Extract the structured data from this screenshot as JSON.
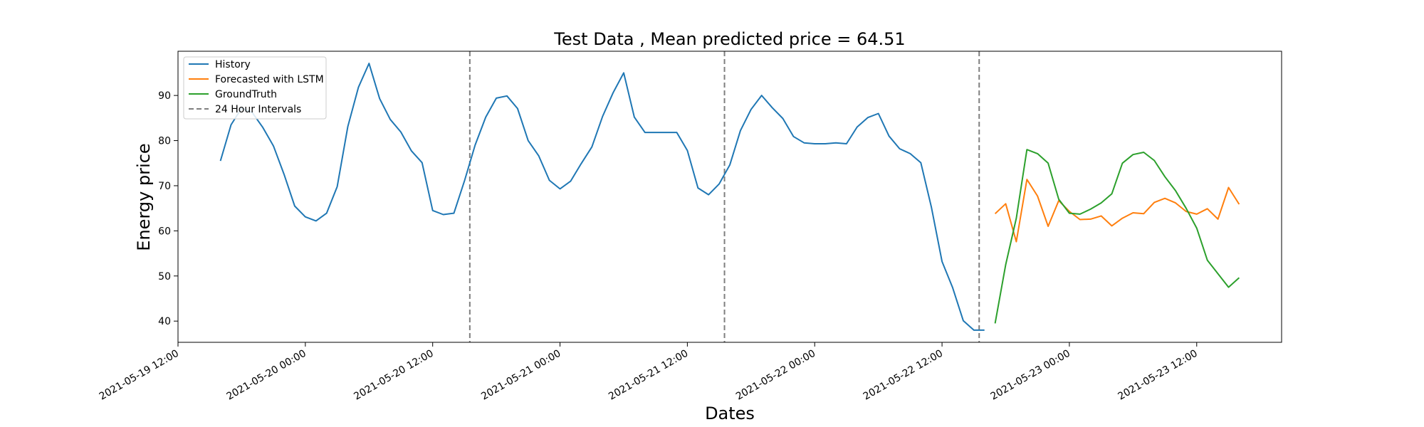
{
  "chart_data": {
    "type": "line",
    "title": "Test Data , Mean predicted price = 64.51",
    "xlabel": "Dates",
    "ylabel": "Energy price",
    "x_axis_type": "datetime",
    "xlim": [
      "2021-05-19 12:00",
      "2021-05-23 20:00"
    ],
    "ylim": [
      35.3,
      99.8
    ],
    "xticks": [
      "2021-05-19 12:00",
      "2021-05-20 00:00",
      "2021-05-20 12:00",
      "2021-05-21 00:00",
      "2021-05-21 12:00",
      "2021-05-22 00:00",
      "2021-05-22 12:00",
      "2021-05-23 00:00",
      "2021-05-23 12:00"
    ],
    "xtick_labels": [
      "2021-05-19 12:00",
      "2021-05-20 00:00",
      "2021-05-20 12:00",
      "2021-05-21 00:00",
      "2021-05-21 12:00",
      "2021-05-22 00:00",
      "2021-05-22 12:00",
      "2021-05-23 00:00",
      "2021-05-23 12:00"
    ],
    "yticks": [
      40,
      50,
      60,
      70,
      80,
      90
    ],
    "ytick_labels": [
      "40",
      "50",
      "60",
      "70",
      "80",
      "90"
    ],
    "grid": false,
    "legend_position": "top-left",
    "legend": [
      "History",
      "Forecasted with LSTM",
      "GroundTruth",
      "24 Hour Intervals"
    ],
    "series": [
      {
        "name": "History",
        "color": "#1f77b4",
        "x": [
          "2021-05-19 16:00",
          "2021-05-19 17:00",
          "2021-05-19 18:00",
          "2021-05-19 19:00",
          "2021-05-19 20:00",
          "2021-05-19 21:00",
          "2021-05-19 22:00",
          "2021-05-19 23:00",
          "2021-05-20 00:00",
          "2021-05-20 01:00",
          "2021-05-20 02:00",
          "2021-05-20 03:00",
          "2021-05-20 04:00",
          "2021-05-20 05:00",
          "2021-05-20 06:00",
          "2021-05-20 07:00",
          "2021-05-20 08:00",
          "2021-05-20 09:00",
          "2021-05-20 10:00",
          "2021-05-20 11:00",
          "2021-05-20 12:00",
          "2021-05-20 13:00",
          "2021-05-20 14:00",
          "2021-05-20 15:00",
          "2021-05-20 16:00",
          "2021-05-20 17:00",
          "2021-05-20 18:00",
          "2021-05-20 19:00",
          "2021-05-20 20:00",
          "2021-05-20 21:00",
          "2021-05-20 22:00",
          "2021-05-20 23:00",
          "2021-05-21 00:00",
          "2021-05-21 01:00",
          "2021-05-21 02:00",
          "2021-05-21 03:00",
          "2021-05-21 04:00",
          "2021-05-21 05:00",
          "2021-05-21 06:00",
          "2021-05-21 07:00",
          "2021-05-21 08:00",
          "2021-05-21 09:00",
          "2021-05-21 10:00",
          "2021-05-21 11:00",
          "2021-05-21 12:00",
          "2021-05-21 13:00",
          "2021-05-21 14:00",
          "2021-05-21 15:00",
          "2021-05-21 16:00",
          "2021-05-21 17:00",
          "2021-05-21 18:00",
          "2021-05-21 19:00",
          "2021-05-21 20:00",
          "2021-05-21 21:00",
          "2021-05-21 22:00",
          "2021-05-21 23:00",
          "2021-05-22 00:00",
          "2021-05-22 01:00",
          "2021-05-22 02:00",
          "2021-05-22 03:00",
          "2021-05-22 04:00",
          "2021-05-22 05:00",
          "2021-05-22 06:00",
          "2021-05-22 07:00",
          "2021-05-22 08:00",
          "2021-05-22 09:00",
          "2021-05-22 10:00",
          "2021-05-22 11:00",
          "2021-05-22 12:00",
          "2021-05-22 13:00",
          "2021-05-22 14:00",
          "2021-05-22 15:00",
          "2021-05-22 16:00"
        ],
        "values": [
          75.5,
          83.5,
          87.2,
          86.2,
          82.9,
          78.8,
          72.5,
          65.5,
          63.1,
          62.2,
          63.9,
          69.8,
          83.1,
          91.8,
          97.1,
          89.3,
          84.7,
          81.9,
          77.7,
          75.1,
          64.5,
          63.6,
          63.9,
          71.1,
          79.0,
          85.2,
          89.4,
          89.9,
          87.1,
          80.0,
          76.6,
          71.2,
          69.3,
          71.0,
          74.9,
          78.6,
          85.3,
          90.6,
          95.0,
          85.2,
          81.8,
          81.8,
          81.8,
          81.8,
          77.8,
          69.5,
          68.0,
          70.4,
          74.6,
          82.2,
          86.9,
          90.0,
          87.3,
          84.9,
          80.9,
          79.5,
          79.3,
          79.3,
          79.5,
          79.3,
          83.0,
          85.1,
          86.0,
          81.0,
          78.2,
          77.1,
          75.1,
          65.2,
          53.2,
          47.4,
          40.1,
          38.0,
          38.0
        ]
      },
      {
        "name": "Forecasted with LSTM",
        "color": "#ff7f0e",
        "x": [
          "2021-05-22 17:00",
          "2021-05-22 18:00",
          "2021-05-22 19:00",
          "2021-05-22 20:00",
          "2021-05-22 21:00",
          "2021-05-22 22:00",
          "2021-05-22 23:00",
          "2021-05-23 00:00",
          "2021-05-23 01:00",
          "2021-05-23 02:00",
          "2021-05-23 03:00",
          "2021-05-23 04:00",
          "2021-05-23 05:00",
          "2021-05-23 06:00",
          "2021-05-23 07:00",
          "2021-05-23 08:00",
          "2021-05-23 09:00",
          "2021-05-23 10:00",
          "2021-05-23 11:00",
          "2021-05-23 12:00",
          "2021-05-23 13:00",
          "2021-05-23 14:00",
          "2021-05-23 15:00",
          "2021-05-23 16:00"
        ],
        "values": [
          63.8,
          66.0,
          57.6,
          71.4,
          67.7,
          61.0,
          66.7,
          64.3,
          62.5,
          62.6,
          63.3,
          61.1,
          62.8,
          64.0,
          63.8,
          66.3,
          67.2,
          66.2,
          64.3,
          63.7,
          64.9,
          62.6,
          69.6,
          65.9
        ]
      },
      {
        "name": "GroundTruth",
        "color": "#2ca02c",
        "x": [
          "2021-05-22 17:00",
          "2021-05-22 18:00",
          "2021-05-22 19:00",
          "2021-05-22 20:00",
          "2021-05-22 21:00",
          "2021-05-22 22:00",
          "2021-05-22 23:00",
          "2021-05-23 00:00",
          "2021-05-23 01:00",
          "2021-05-23 02:00",
          "2021-05-23 03:00",
          "2021-05-23 04:00",
          "2021-05-23 05:00",
          "2021-05-23 06:00",
          "2021-05-23 07:00",
          "2021-05-23 08:00",
          "2021-05-23 09:00",
          "2021-05-23 10:00",
          "2021-05-23 11:00",
          "2021-05-23 12:00",
          "2021-05-23 13:00",
          "2021-05-23 14:00",
          "2021-05-23 15:00",
          "2021-05-23 16:00"
        ],
        "values": [
          39.5,
          52.5,
          62.8,
          78.0,
          77.1,
          75.0,
          67.0,
          63.9,
          63.7,
          64.8,
          66.2,
          68.2,
          75.0,
          76.9,
          77.4,
          75.6,
          72.0,
          68.9,
          65.0,
          60.6,
          53.5,
          50.5,
          47.5,
          49.6
        ]
      }
    ],
    "vlines": {
      "name": "24 Hour Intervals",
      "color": "#7f7f7f",
      "style": "dashed",
      "x": [
        "2021-05-20 15:30",
        "2021-05-21 15:30",
        "2021-05-22 15:30"
      ]
    }
  }
}
